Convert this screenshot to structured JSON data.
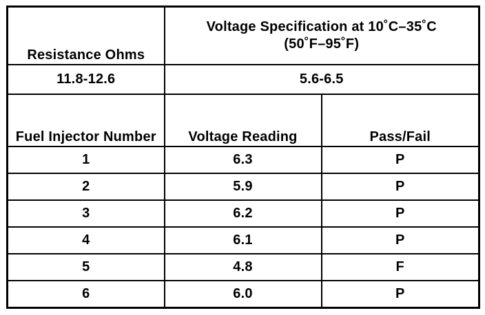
{
  "header": {
    "resistance_label": "Resistance Ohms",
    "voltage_spec_line1": "Voltage Specification at 10˚C–35˚C",
    "voltage_spec_line2": "(50˚F–95˚F)"
  },
  "spec_values": {
    "resistance": "11.8-12.6",
    "voltage": "5.6-6.5"
  },
  "columns": {
    "injector_number": "Fuel Injector Number",
    "voltage_reading": "Voltage Reading",
    "pass_fail": "Pass/Fail"
  },
  "rows": [
    {
      "number": "1",
      "voltage": "6.3",
      "result": "P"
    },
    {
      "number": "2",
      "voltage": "5.9",
      "result": "P"
    },
    {
      "number": "3",
      "voltage": "6.2",
      "result": "P"
    },
    {
      "number": "4",
      "voltage": "6.1",
      "result": "P"
    },
    {
      "number": "5",
      "voltage": "4.8",
      "result": "F"
    },
    {
      "number": "6",
      "voltage": "6.0",
      "result": "P"
    }
  ]
}
